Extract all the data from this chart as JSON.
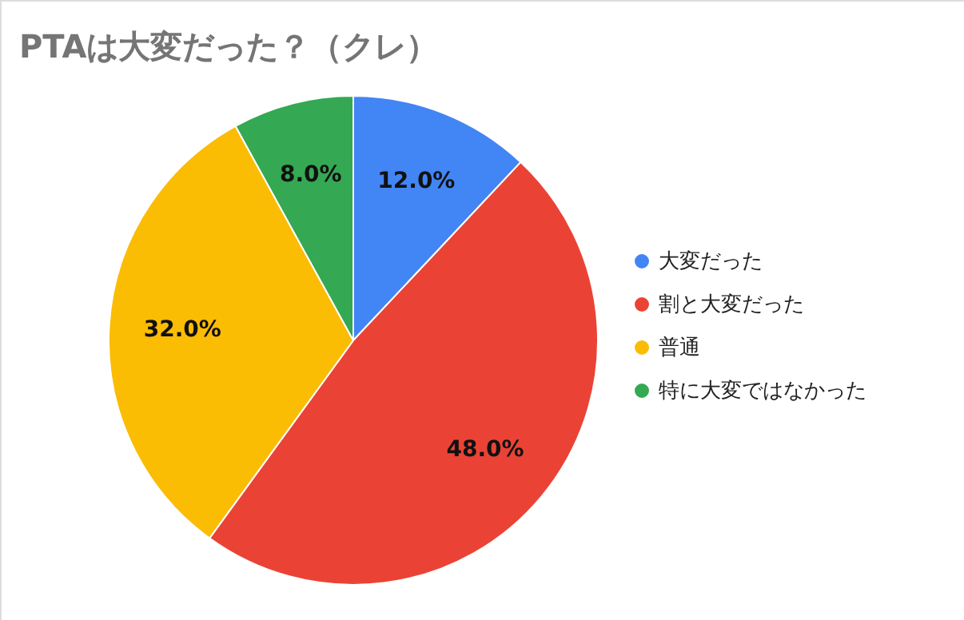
{
  "chart_data": {
    "type": "pie",
    "title": "PTAは大変だった？（クレ）",
    "categories": [
      "大変だった",
      "割と大変だった",
      "普通",
      "特に大変ではなかった"
    ],
    "values": [
      12.0,
      48.0,
      32.0,
      8.0
    ],
    "value_labels": [
      "12.0%",
      "48.0%",
      "32.0%",
      "8.0%"
    ],
    "colors": [
      "#4285f4",
      "#ea4335",
      "#fbbc04",
      "#34a853"
    ],
    "legend": "right"
  }
}
